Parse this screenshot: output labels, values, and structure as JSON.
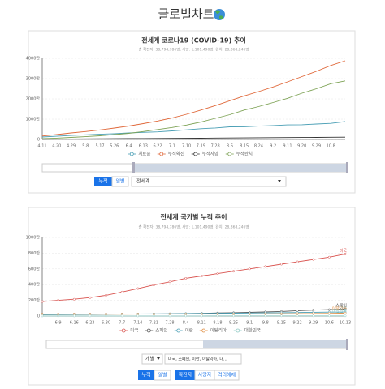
{
  "header": {
    "title": "글로벌차트"
  },
  "chart_data": [
    {
      "type": "line",
      "title": "전세계 코로나19 (COVID-19) 추이",
      "subtitle": "총 확진자: 38,794,786명, 사망: 1,101,490명, 완치: 28,868,246명",
      "categories": [
        "4.11",
        "4.20",
        "4.29",
        "5.8",
        "5.17",
        "5.26",
        "6.4",
        "6.13",
        "6.22",
        "7.1",
        "7.10",
        "7.19",
        "7.28",
        "8.6",
        "8.15",
        "8.24",
        "9.2",
        "9.11",
        "9.20",
        "9.29",
        "10.8",
        null
      ],
      "ylim": [
        0,
        40000000
      ],
      "yticks": [
        0,
        {
          "value": 10000000,
          "label": "1000만"
        },
        {
          "value": 20000000,
          "label": "2000만"
        },
        {
          "value": 30000000,
          "label": "3000만"
        },
        {
          "value": 40000000,
          "label": "4000만"
        }
      ],
      "grid": true,
      "markers": false,
      "end_labels": false,
      "series": [
        {
          "name": "치료중",
          "color": "#4a9fb5",
          "values": [
            1200000,
            1580000,
            1980000,
            2280000,
            2580000,
            2850000,
            3210000,
            3470000,
            3730000,
            4190000,
            4740000,
            5300000,
            5640000,
            6190000,
            6230000,
            6580000,
            6830000,
            7180000,
            7230000,
            7590000,
            7940000,
            8800000
          ]
        },
        {
          "name": "누적확진",
          "color": "#e0693b",
          "values": [
            1700000,
            2400000,
            3200000,
            3900000,
            4700000,
            5600000,
            6600000,
            7800000,
            9100000,
            10600000,
            12400000,
            14500000,
            16700000,
            19100000,
            21500000,
            23600000,
            25900000,
            28400000,
            31000000,
            33600000,
            36500000,
            38794786
          ]
        },
        {
          "name": "누적사망",
          "color": "#333333",
          "values": [
            100000,
            170000,
            220000,
            270000,
            320000,
            350000,
            390000,
            430000,
            470000,
            510000,
            560000,
            600000,
            660000,
            710000,
            770000,
            820000,
            870000,
            920000,
            970000,
            1010000,
            1060000,
            1101490
          ]
        },
        {
          "name": "누적완치",
          "color": "#7ea356",
          "values": [
            400000,
            650000,
            1000000,
            1350000,
            1800000,
            2400000,
            3000000,
            3900000,
            4900000,
            5900000,
            7100000,
            8600000,
            10400000,
            12200000,
            14500000,
            16200000,
            18200000,
            20300000,
            22800000,
            25000000,
            27500000,
            28868246
          ]
        }
      ]
    },
    {
      "type": "line",
      "title": "전세계 국가별 누적 추이",
      "subtitle": "총 확진자: 38,794,786명, 사망: 1,101,490명, 완치: 28,868,246명",
      "categories": [
        null,
        "6.9",
        "6.16",
        "6.23",
        "6.30",
        "7.7",
        "7.14",
        "7.21",
        "7.28",
        "8.4",
        "8.11",
        "8.18",
        "8.25",
        "9.1",
        "9.8",
        "9.15",
        "9.22",
        "9.29",
        "10.6",
        "10.13"
      ],
      "ylim": [
        0,
        10000000
      ],
      "yticks": [
        0,
        {
          "value": 2000000,
          "label": "200만"
        },
        {
          "value": 4000000,
          "label": "400만"
        },
        {
          "value": 6000000,
          "label": "600만"
        },
        {
          "value": 8000000,
          "label": "800만"
        },
        {
          "value": 10000000,
          "label": "1000만"
        }
      ],
      "grid": true,
      "markers": true,
      "end_labels": true,
      "series": [
        {
          "name": "미국",
          "color": "#d9534f",
          "values": [
            1850000,
            2000000,
            2140000,
            2350000,
            2640000,
            3060000,
            3500000,
            3960000,
            4350000,
            4800000,
            5100000,
            5400000,
            5700000,
            6000000,
            6300000,
            6600000,
            6900000,
            7200000,
            7500000,
            7900000
          ]
        },
        {
          "name": "스페인",
          "color": "#555555",
          "values": [
            240000,
            240000,
            244000,
            247000,
            250000,
            253000,
            260000,
            270000,
            280000,
            310000,
            340000,
            390000,
            420000,
            460000,
            530000,
            580000,
            680000,
            750000,
            810000,
            890000
          ]
        },
        {
          "name": "이란",
          "color": "#4a9fb5",
          "values": [
            160000,
            180000,
            190000,
            210000,
            230000,
            245000,
            260000,
            275000,
            290000,
            310000,
            330000,
            345000,
            360000,
            380000,
            400000,
            420000,
            440000,
            470000,
            490000,
            510000
          ]
        },
        {
          "name": "이탈리아",
          "color": "#e08a3b",
          "values": [
            234000,
            235000,
            237000,
            239000,
            240000,
            242000,
            244000,
            246000,
            248000,
            250000,
            253000,
            256000,
            262000,
            270000,
            280000,
            290000,
            300000,
            310000,
            330000,
            370000
          ]
        },
        {
          "name": "대한민국",
          "color": "#8fc9c4",
          "values": [
            11500,
            11900,
            12200,
            12500,
            12900,
            13300,
            13700,
            14100,
            14400,
            14700,
            15300,
            16100,
            17700,
            19900,
            21200,
            22500,
            23400,
            24200,
            24900,
            25000
          ]
        }
      ]
    }
  ],
  "controls": {
    "chart1": {
      "mode_on": "누적",
      "mode_off": "일별",
      "region": "전세계"
    },
    "chart2": {
      "view": "개별",
      "countries": "미국, 스페인, 이란, 이탈리아, 대...",
      "mode_on": "누적",
      "mode_off": "일별",
      "metric_on": "확진자",
      "metric_2": "사망자",
      "metric_3": "격리해제"
    }
  }
}
